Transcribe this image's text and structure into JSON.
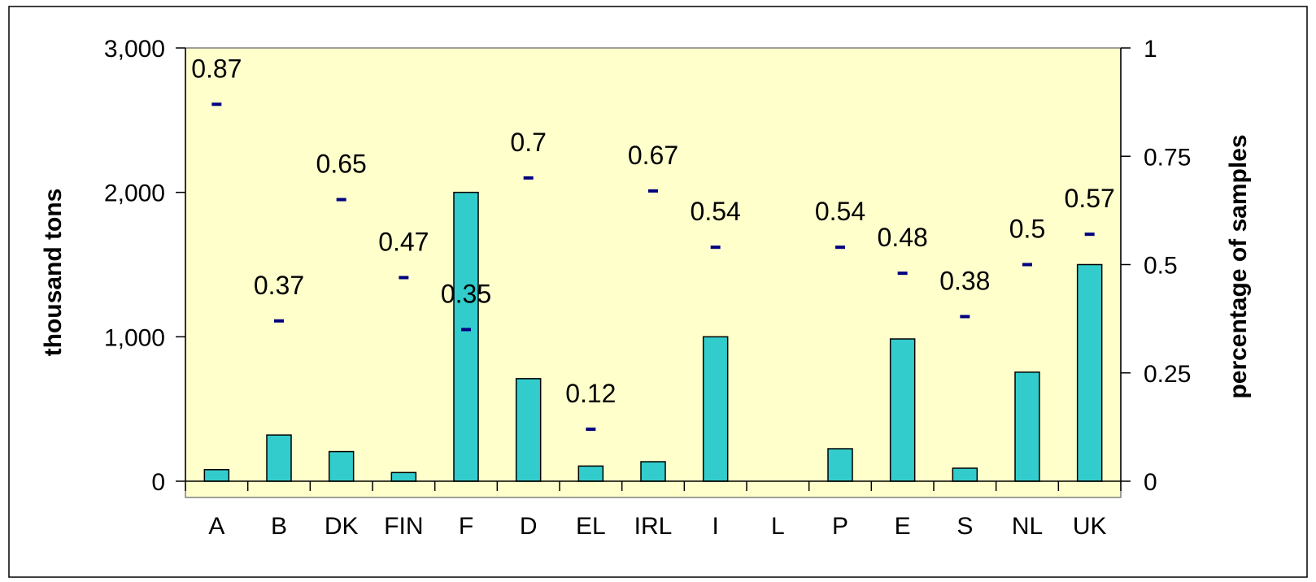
{
  "chart_data": {
    "type": "bar",
    "categories": [
      "A",
      "B",
      "DK",
      "FIN",
      "F",
      "D",
      "EL",
      "IRL",
      "I",
      "L",
      "P",
      "E",
      "S",
      "NL",
      "UK"
    ],
    "series": [
      {
        "name": "",
        "axis": "left",
        "type": "bar",
        "values": [
          80,
          320,
          205,
          60,
          2000,
          710,
          105,
          135,
          1000,
          0,
          225,
          985,
          90,
          755,
          1500
        ]
      },
      {
        "name": "",
        "axis": "right",
        "type": "dash-marker",
        "values": [
          0.87,
          0.37,
          0.65,
          0.47,
          0.35,
          0.7,
          0.12,
          0.67,
          0.54,
          null,
          0.54,
          0.48,
          0.38,
          0.5,
          0.57
        ],
        "labels": [
          "0.87",
          "0.37",
          "0.65",
          "0.47",
          "0.35",
          "0.7",
          "0.12",
          "0.67",
          "0.54",
          "",
          "0.54",
          "0.48",
          "0.38",
          "0.5",
          "0.57"
        ]
      }
    ],
    "ylabel": "thousand tons",
    "ylim": [
      0,
      3000
    ],
    "yticks": [
      "0",
      "1,000",
      "2,000",
      "3,000"
    ],
    "y2label": "percentage of samples",
    "y2lim": [
      0,
      1
    ],
    "y2ticks": [
      "0",
      "0.25",
      "0.5",
      "0.75",
      "1"
    ],
    "grid": false,
    "legend": "none",
    "colors": {
      "bar_fill": "#33CCCC",
      "bar_stroke": "#000000",
      "marker": "#000080",
      "plot_background": "#FFFFCC",
      "page_background": "#FFFFFF"
    }
  }
}
